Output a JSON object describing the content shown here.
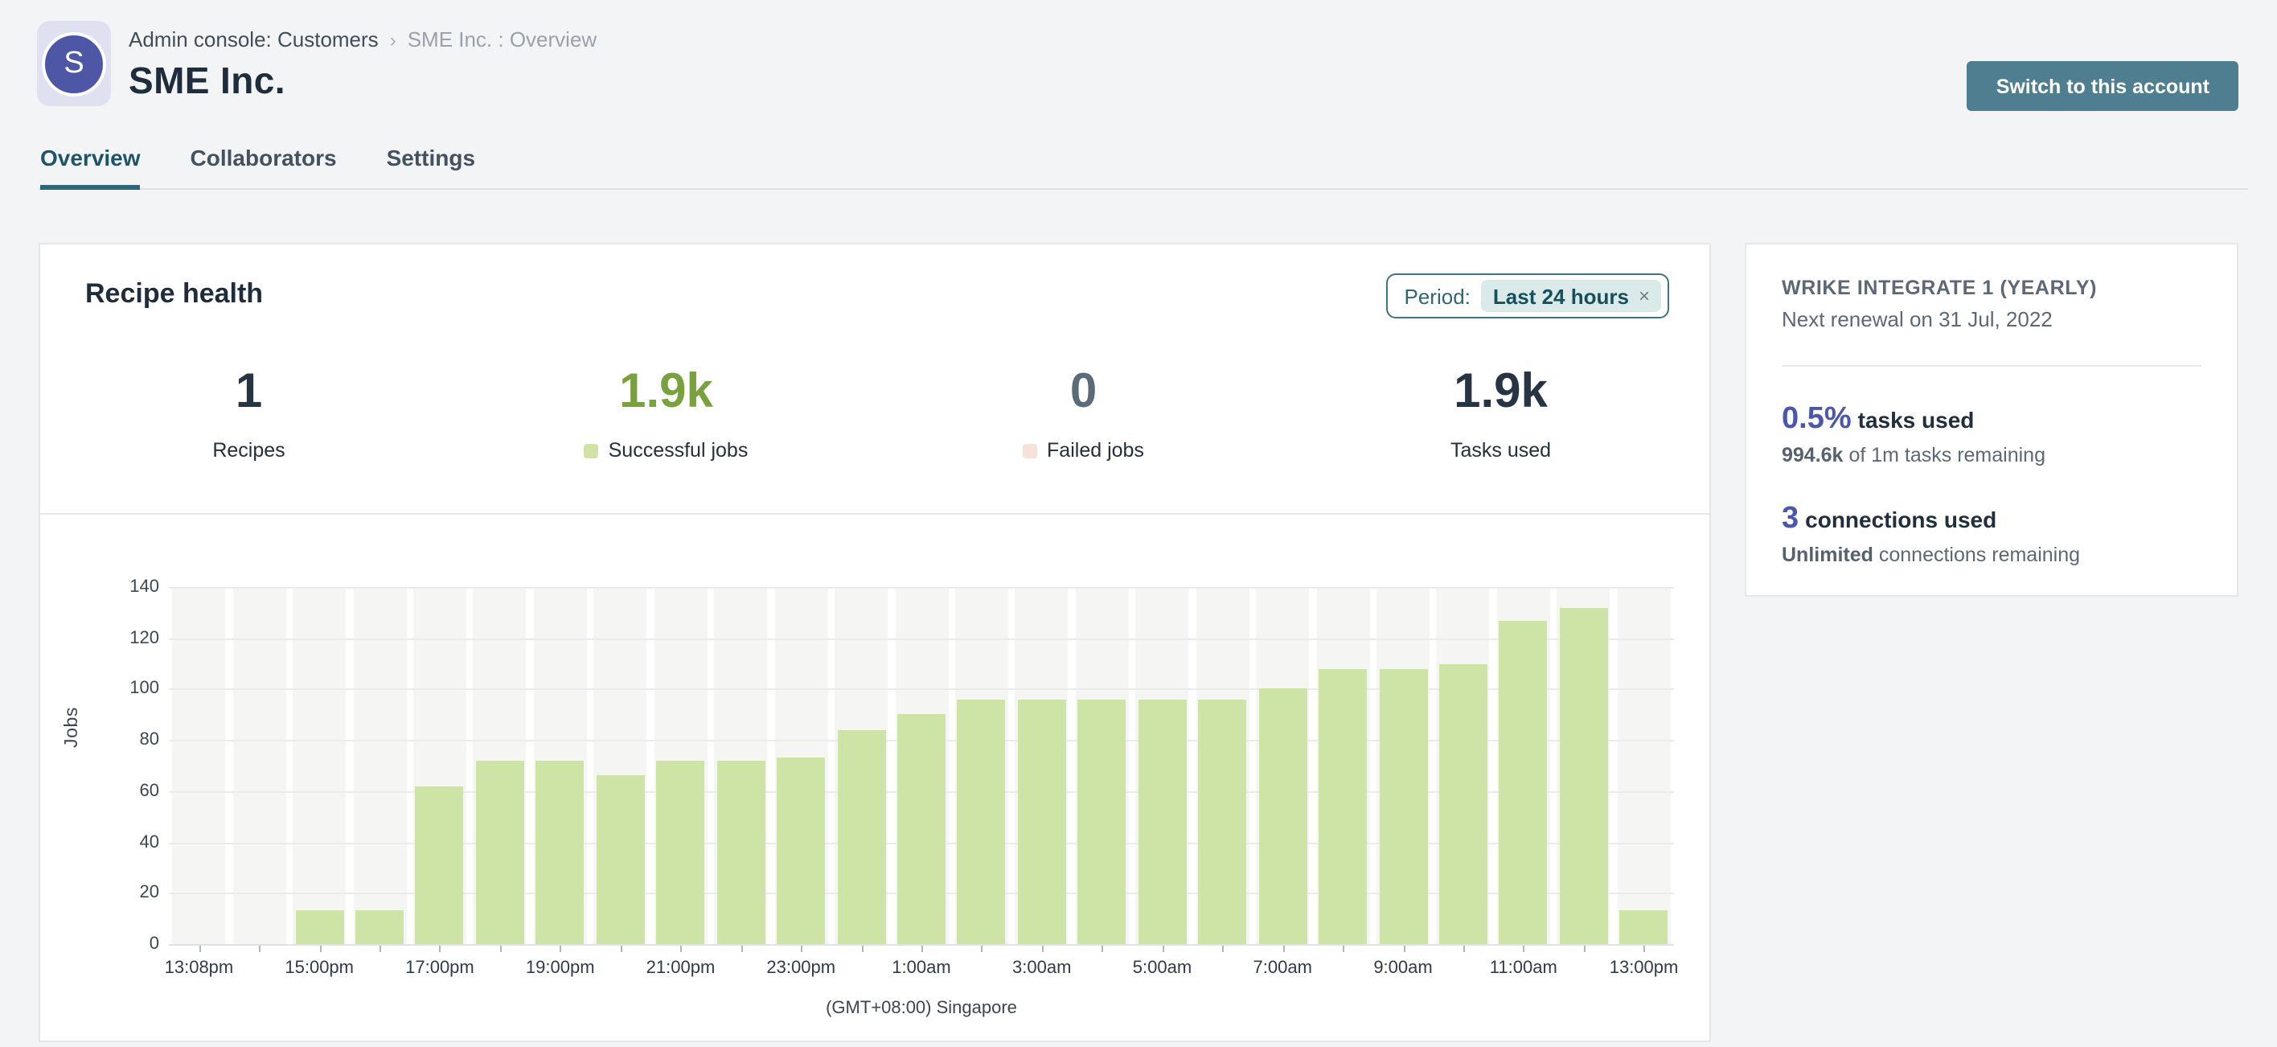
{
  "header": {
    "breadcrumb": {
      "primary": "Admin console: Customers",
      "separator": "›",
      "secondary": "SME Inc. : Overview"
    },
    "avatar_letter": "S",
    "title": "SME Inc.",
    "switch_button_label": "Switch to this account"
  },
  "tabs": [
    {
      "label": "Overview",
      "active": true
    },
    {
      "label": "Collaborators",
      "active": false
    },
    {
      "label": "Settings",
      "active": false
    }
  ],
  "recipe_health": {
    "title": "Recipe health",
    "period": {
      "label": "Period:",
      "value": "Last 24 hours",
      "close": "×"
    },
    "stats": [
      {
        "value": "1",
        "label": "Recipes",
        "color": "#273444",
        "legend": null
      },
      {
        "value": "1.9k",
        "label": "Successful jobs",
        "color": "#79a23e",
        "legend": "#cfe3a6"
      },
      {
        "value": "0",
        "label": "Failed jobs",
        "color": "#5a6b7a",
        "legend": "#f6e2d8"
      },
      {
        "value": "1.9k",
        "label": "Tasks used",
        "color": "#273444",
        "legend": null
      }
    ]
  },
  "chart_data": {
    "type": "bar",
    "title": "",
    "xlabel": "",
    "ylabel": "Jobs",
    "caption": "(GMT+08:00) Singapore",
    "ylim": [
      0,
      140
    ],
    "yticks": [
      0,
      20,
      40,
      60,
      80,
      100,
      120,
      140
    ],
    "grid": true,
    "x_tick_labels": [
      "13:08pm",
      "15:00pm",
      "17:00pm",
      "19:00pm",
      "21:00pm",
      "23:00pm",
      "1:00am",
      "3:00am",
      "5:00am",
      "7:00am",
      "9:00am",
      "11:00am",
      "13:00pm"
    ],
    "label_every": 2,
    "values": [
      0,
      0,
      13,
      13,
      62,
      72,
      72,
      66,
      72,
      72,
      73,
      84,
      90,
      96,
      96,
      96,
      96,
      96,
      100,
      108,
      108,
      110,
      127,
      132,
      13
    ],
    "series_name": "Successful jobs",
    "bar_color": "#cde4a6",
    "failed_color": "#f6e2d8"
  },
  "plan_card": {
    "name": "WRIKE INTEGRATE 1 (YEARLY)",
    "renewal": "Next renewal on 31 Jul, 2022",
    "tasks": {
      "pct": "0.5%",
      "label": "tasks used",
      "detail_bold": "994.6k",
      "detail_rest": "of 1m tasks remaining"
    },
    "connections": {
      "count": "3",
      "label": "connections used",
      "detail_bold": "Unlimited",
      "detail_rest": "connections remaining"
    }
  },
  "colors": {
    "accent_teal_button": "#4e7e90",
    "tab_active": "#1d5468",
    "tab_underline": "#2e6779",
    "chip_border": "#3e7386",
    "chip_pill_bg": "#d9eae9",
    "success_green": "#79a23e",
    "bar_green": "#cde4a6",
    "indigo_metric": "#4c56aa",
    "avatar_bg": "#4d57a6",
    "avatar_tile_bg": "#dfe1f1",
    "page_bg": "#f3f4f6"
  }
}
